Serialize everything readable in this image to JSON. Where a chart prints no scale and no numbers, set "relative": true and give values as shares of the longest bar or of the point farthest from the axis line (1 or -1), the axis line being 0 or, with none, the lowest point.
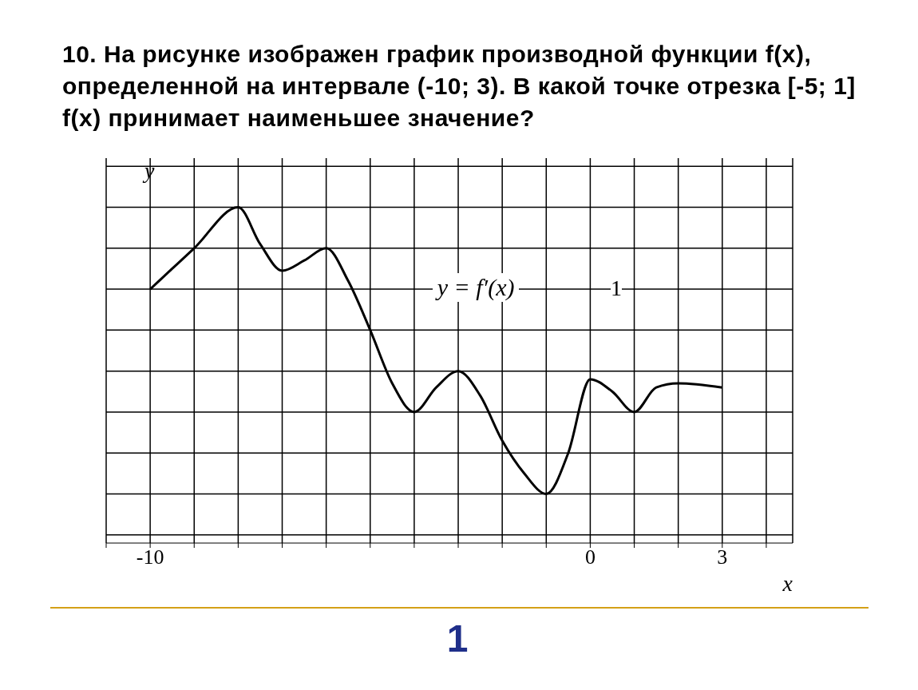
{
  "chart_data": {
    "type": "line",
    "title": "10. На рисунке изображен график производной функции f(x), определенной на интервале (-10; 3). В какой точке отрезка [-5; 1] f(x) принимает наименьшее значение?",
    "xlabel": "x",
    "ylabel": "y",
    "x": [
      -10,
      -9.5,
      -9,
      -8,
      -7.5,
      -7,
      -6.5,
      -6,
      -5.5,
      -5,
      -4.5,
      -4,
      -3.5,
      -3,
      -2.5,
      -2,
      -1.5,
      -1,
      -0.5,
      0,
      0.5,
      1,
      1.5,
      2,
      3
    ],
    "series": [
      {
        "color": "#000000",
        "values": [
          0.25,
          0.375,
          0.5,
          0.75,
          0.525,
          0.3625,
          0.425,
          0.5,
          0.3,
          0,
          -0.325,
          -0.5,
          -0.35,
          -0.25,
          -0.4,
          -0.675,
          -0.875,
          -1,
          -0.75,
          -0.3,
          -0.375,
          -0.5,
          -0.35,
          -0.325,
          -0.35
        ]
      }
    ],
    "relative": true,
    "xlim": [
      -11,
      4.6
    ],
    "xticks": [
      {
        "value": -11,
        "label": null
      },
      -10,
      {
        "value": -9,
        "label": null
      },
      {
        "value": -8,
        "label": null
      },
      {
        "value": -7,
        "label": null
      },
      {
        "value": -6,
        "label": null
      },
      {
        "value": -5,
        "label": null
      },
      {
        "value": -4,
        "label": null
      },
      {
        "value": -3,
        "label": null
      },
      {
        "value": -2,
        "label": null
      },
      {
        "value": -1,
        "label": null
      },
      0,
      {
        "value": 1,
        "label": null
      },
      {
        "value": 2,
        "label": null
      },
      3,
      {
        "value": 4,
        "label": null
      }
    ],
    "grid": true,
    "legend": false,
    "marker": "none",
    "line_style": "solid",
    "annotations": [
      "y = f′(x)",
      "1",
      "1"
    ]
  }
}
